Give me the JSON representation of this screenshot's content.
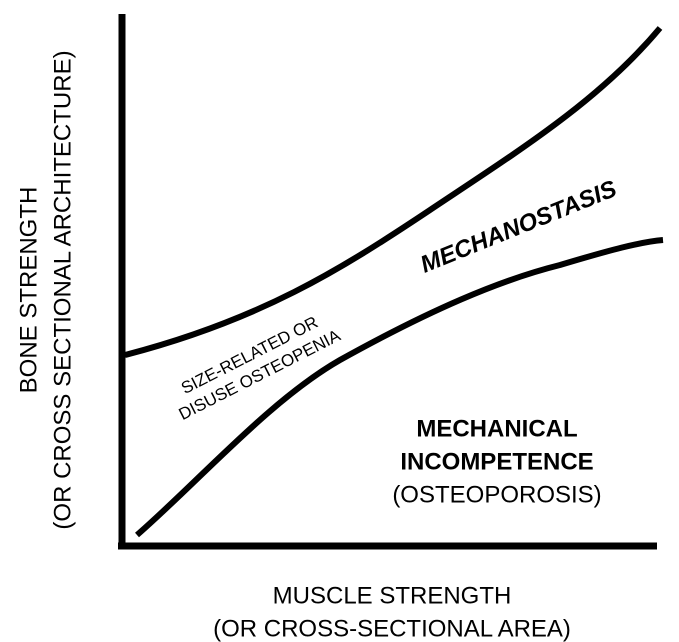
{
  "y_axis": {
    "line1": "BONE STRENGTH",
    "line2": "(OR CROSS SECTIONAL ARCHITECTURE)"
  },
  "x_axis": {
    "line1": "MUSCLE STRENGTH",
    "line2": "(OR CROSS-SECTIONAL AREA)"
  },
  "regions": {
    "mechanostasis": "MECHANOSTASIS",
    "osteopenia": {
      "line1": "SIZE-RELATED OR",
      "line2": "DISUSE OSTEOPENIA"
    },
    "incompetence": {
      "line1": "MECHANICAL",
      "line2": "INCOMPETENCE",
      "line3": "(OSTEOPOROSIS)"
    }
  }
}
